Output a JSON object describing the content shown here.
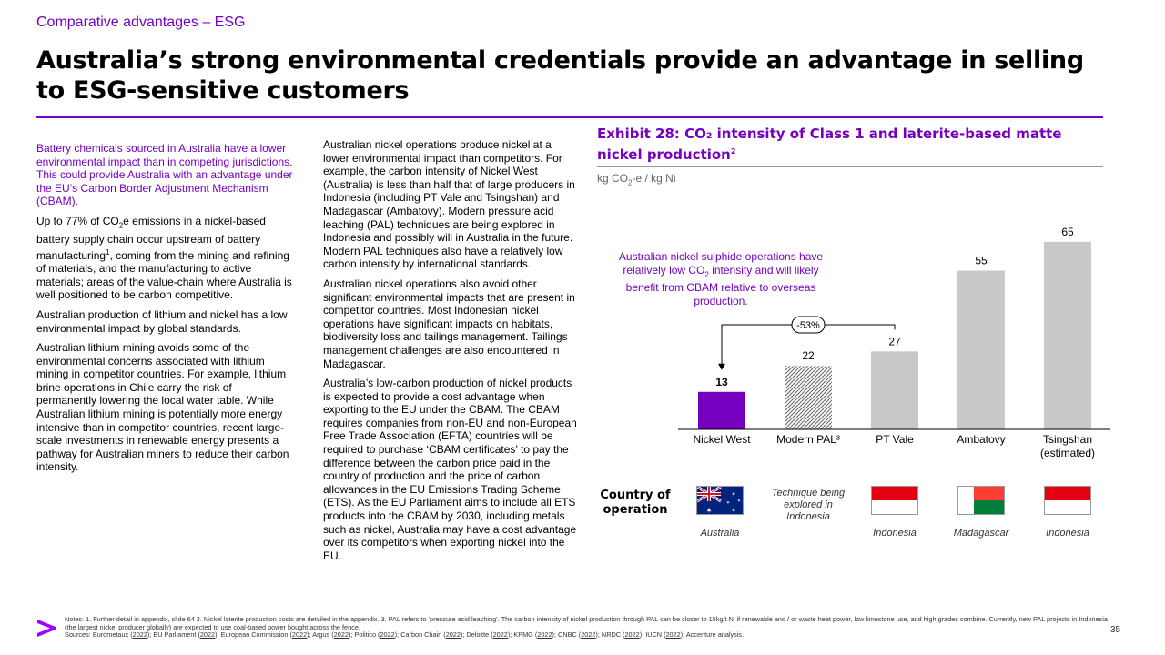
{
  "header": {
    "kicker": "Comparative advantages – ESG",
    "title": "Australia’s strong environmental credentials provide an advantage in selling to ESG-sensitive customers"
  },
  "col1": {
    "lead": "Battery chemicals sourced in Australia have a lower environmental impact than in competing jurisdictions. This could provide Australia with an advantage under the EU’s Carbon Border Adjustment Mechanism (CBAM).",
    "p1_a": "Up to 77% of CO",
    "p1_sub": "2",
    "p1_b": "e emissions in a nickel-based battery supply chain occur upstream of battery manufacturing",
    "p1_sup": "1",
    "p1_c": ", coming from the mining and refining of materials, and the manufacturing to active materials; areas of the value-chain where Australia is well positioned to be carbon competitive.",
    "p2": "Australian production of lithium and nickel has a low environmental impact by global standards.",
    "p3": "Australian lithium mining avoids some of the environmental concerns associated with lithium mining in competitor countries. For example, lithium brine operations in Chile carry the risk of permanently lowering the local water table. While Australian lithium mining is potentially more energy intensive than in competitor countries, recent large-scale investments in renewable energy presents a pathway for Australian miners to reduce their carbon intensity."
  },
  "col2": {
    "p1": "Australian nickel operations produce nickel at a lower environmental impact than competitors. For example, the carbon intensity of Nickel West (Australia) is less than half that of large producers in Indonesia (including PT Vale and Tsingshan) and Madagascar (Ambatovy). Modern pressure acid leaching (PAL) techniques are being explored in Indonesia and possibly will in Australia in the future. Modern PAL techniques also have a relatively low carbon intensity by international standards.",
    "p2": "Australian nickel operations also avoid other significant environmental impacts that are present in competitor countries. Most Indonesian nickel operations have significant impacts on habitats, biodiversity loss and tailings management. Tailings management challenges are also encountered in Madagascar.",
    "p3": "Australia’s low-carbon production of nickel products is expected to provide a cost advantage when exporting to the EU under the CBAM. The CBAM requires companies from non-EU and non-European Free Trade Association (EFTA) countries will be required to purchase ‘CBAM certificates’ to pay the difference between the carbon price paid in the country of production and the price of carbon allowances in the EU Emissions Trading Scheme (ETS). As the EU Parliament aims to include all ETS products into the CBAM by 2030, including metals such as nickel, Australia may have a cost advantage over its competitors when exporting nickel into the EU."
  },
  "exhibit": {
    "title_a": "Exhibit 28: CO₂ intensity of Class 1 and laterite-based matte nickel production",
    "title_sup": "2",
    "unit_a": "kg CO",
    "unit_sub": "2",
    "unit_b": "-e / kg Ni",
    "callout_a": "Australian nickel sulphide operations have relatively low CO",
    "callout_sub": "2",
    "callout_b": " intensity and will likely benefit from CBAM relative to overseas production.",
    "diff_label": "-53%"
  },
  "chart_data": {
    "type": "bar",
    "categories": [
      "Nickel West",
      "Modern PAL³",
      "PT Vale",
      "Ambatovy",
      "Tsingshan"
    ],
    "category_sublabels": [
      "",
      "",
      "",
      "",
      "(estimated)"
    ],
    "values": [
      13,
      22,
      27,
      55,
      65
    ],
    "value_labels": [
      "13",
      "22",
      "27",
      "55",
      "65"
    ],
    "ylim": [
      0,
      70
    ],
    "colors": [
      "#7500c0",
      "hatched",
      "#c8c8c8",
      "#c8c8c8",
      "#c8c8c8"
    ],
    "title": "Exhibit 28: CO₂ intensity of Class 1 and laterite-based matte nickel production²",
    "ylabel": "kg CO₂-e / kg Ni",
    "xlabel": "",
    "grid": false
  },
  "operation": {
    "row_label": "Country of operation",
    "technique_note": "Technique being explored in Indonesia",
    "countries": [
      "Australia",
      "Indonesia",
      "Madagascar",
      "Indonesia"
    ],
    "flags": [
      "australia-flag-icon",
      "indonesia-flag-icon",
      "madagascar-flag-icon",
      "indonesia-flag-icon"
    ]
  },
  "footer": {
    "notes": "Notes: 1. Further detail in appendix, slide 64 2. Nickel laterite production costs are detailed in the appendix. 3. PAL refers to ‘pressure acid leaching’. The carbon intensity of nickel production through PAL can be closer to 15kg/t Ni if renewable and / or waste heat power, low limestone use, and high grades combine. Currently, new PAL projects in Indonesia (the largest nickel producer globally) are expected to use coal-based power bought across the fence.",
    "sources_label": "Sources: ",
    "sources": [
      {
        "name": "Eurometaux",
        "year": "2022"
      },
      {
        "name": "EU Parliament",
        "year": "2022"
      },
      {
        "name": "European Commission",
        "year": "2022"
      },
      {
        "name": "Argus",
        "year": "2022"
      },
      {
        "name": "Politico",
        "year": "2022"
      },
      {
        "name": "Carbon Chain",
        "year": "2022"
      },
      {
        "name": "Deloitte",
        "year": "2022"
      },
      {
        "name": "KPMG",
        "year": "2022"
      },
      {
        "name": "CNBC",
        "year": "2022"
      },
      {
        "name": "NRDC",
        "year": "2022"
      },
      {
        "name": "IUCN",
        "year": "2022"
      }
    ],
    "sources_tail": "Accenture analysis.",
    "page_number": "35",
    "logo_icon": "accenture-chevron-logo-icon"
  }
}
